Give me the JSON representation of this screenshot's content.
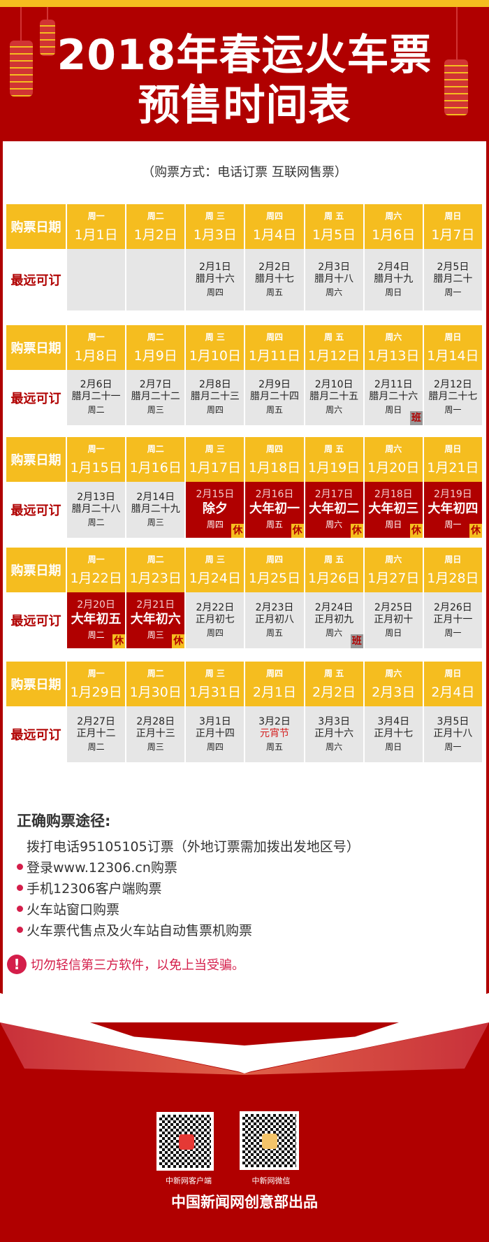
{
  "header": {
    "line1": "2018年春运火车票",
    "line2": "预售时间表"
  },
  "subtitle": "（购票方式：电话订票  互联网售票）",
  "labels": {
    "purchase_date": "购票日期",
    "latest_bookable": "最远可订"
  },
  "colors": {
    "red": "#b00000",
    "yellow": "#f5bd1f",
    "grey": "#e6e6e6",
    "pink": "#d41e4a"
  },
  "weeks": [
    {
      "days": [
        {
          "wd": "周一",
          "date": "1月1日"
        },
        {
          "wd": "周二",
          "date": "1月2日"
        },
        {
          "wd": "周 三",
          "date": "1月3日"
        },
        {
          "wd": "周四",
          "date": "1月4日"
        },
        {
          "wd": "周 五",
          "date": "1月5日"
        },
        {
          "wd": "周六",
          "date": "1月6日"
        },
        {
          "wd": "周日",
          "date": "1月7日"
        }
      ],
      "cells": [
        {},
        {},
        {
          "d": "2月1日",
          "l": "腊月十六",
          "w": "周四"
        },
        {
          "d": "2月2日",
          "l": "腊月十七",
          "w": "周五"
        },
        {
          "d": "2月3日",
          "l": "腊月十八",
          "w": "周六"
        },
        {
          "d": "2月4日",
          "l": "腊月十九",
          "w": "周日"
        },
        {
          "d": "2月5日",
          "l": "腊月二十",
          "w": "周一"
        }
      ]
    },
    {
      "days": [
        {
          "wd": "周一",
          "date": "1月8日"
        },
        {
          "wd": "周二",
          "date": "1月9日"
        },
        {
          "wd": "周 三",
          "date": "1月10日"
        },
        {
          "wd": "周四",
          "date": "1月11日"
        },
        {
          "wd": "周 五",
          "date": "1月12日"
        },
        {
          "wd": "周六",
          "date": "1月13日"
        },
        {
          "wd": "周日",
          "date": "1月14日"
        }
      ],
      "cells": [
        {
          "d": "2月6日",
          "l": "腊月二十一",
          "w": "周二"
        },
        {
          "d": "2月7日",
          "l": "腊月二十二",
          "w": "周三"
        },
        {
          "d": "2月8日",
          "l": "腊月二十三",
          "w": "周四"
        },
        {
          "d": "2月9日",
          "l": "腊月二十四",
          "w": "周五"
        },
        {
          "d": "2月10日",
          "l": "腊月二十五",
          "w": "周六"
        },
        {
          "d": "2月11日",
          "l": "腊月二十六",
          "w": "周日",
          "badge": "班",
          "type": "work"
        },
        {
          "d": "2月12日",
          "l": "腊月二十七",
          "w": "周一"
        }
      ]
    },
    {
      "days": [
        {
          "wd": "周一",
          "date": "1月15日"
        },
        {
          "wd": "周二",
          "date": "1月16日"
        },
        {
          "wd": "周 三",
          "date": "1月17日"
        },
        {
          "wd": "周四",
          "date": "1月18日"
        },
        {
          "wd": "周 五",
          "date": "1月19日"
        },
        {
          "wd": "周六",
          "date": "1月20日"
        },
        {
          "wd": "周日",
          "date": "1月21日"
        }
      ],
      "cells": [
        {
          "d": "2月13日",
          "l": "腊月二十八",
          "w": "周二"
        },
        {
          "d": "2月14日",
          "l": "腊月二十九",
          "w": "周三"
        },
        {
          "d": "2月15日",
          "l": "除夕",
          "w": "周四",
          "badge": "休",
          "type": "rest",
          "hol": true
        },
        {
          "d": "2月16日",
          "l": "大年初一",
          "w": "周五",
          "badge": "休",
          "type": "rest",
          "hol": true
        },
        {
          "d": "2月17日",
          "l": "大年初二",
          "w": "周六",
          "badge": "休",
          "type": "rest",
          "hol": true
        },
        {
          "d": "2月18日",
          "l": "大年初三",
          "w": "周日",
          "badge": "休",
          "type": "rest",
          "hol": true
        },
        {
          "d": "2月19日",
          "l": "大年初四",
          "w": "周一",
          "badge": "休",
          "type": "rest",
          "hol": true
        }
      ]
    },
    {
      "days": [
        {
          "wd": "周一",
          "date": "1月22日"
        },
        {
          "wd": "周二",
          "date": "1月23日"
        },
        {
          "wd": "周 三",
          "date": "1月24日"
        },
        {
          "wd": "周四",
          "date": "1月25日"
        },
        {
          "wd": "周 五",
          "date": "1月26日"
        },
        {
          "wd": "周六",
          "date": "1月27日"
        },
        {
          "wd": "周日",
          "date": "1月28日"
        }
      ],
      "cells": [
        {
          "d": "2月20日",
          "l": "大年初五",
          "w": "周二",
          "badge": "休",
          "type": "rest",
          "hol": true
        },
        {
          "d": "2月21日",
          "l": "大年初六",
          "w": "周三",
          "badge": "休",
          "type": "rest",
          "hol": true
        },
        {
          "d": "2月22日",
          "l": "正月初七",
          "w": "周四"
        },
        {
          "d": "2月23日",
          "l": "正月初八",
          "w": "周五"
        },
        {
          "d": "2月24日",
          "l": "正月初九",
          "w": "周六",
          "badge": "班",
          "type": "work"
        },
        {
          "d": "2月25日",
          "l": "正月初十",
          "w": "周日"
        },
        {
          "d": "2月26日",
          "l": "正月十一",
          "w": "周一"
        }
      ]
    },
    {
      "days": [
        {
          "wd": "周一",
          "date": "1月29日"
        },
        {
          "wd": "周二",
          "date": "1月30日"
        },
        {
          "wd": "周 三",
          "date": "1月31日"
        },
        {
          "wd": "周四",
          "date": "2月1日"
        },
        {
          "wd": "周 五",
          "date": "2月2日"
        },
        {
          "wd": "周六",
          "date": "2月3日"
        },
        {
          "wd": "周日",
          "date": "2月4日"
        }
      ],
      "cells": [
        {
          "d": "2月27日",
          "l": "正月十二",
          "w": "周二"
        },
        {
          "d": "2月28日",
          "l": "正月十三",
          "w": "周三"
        },
        {
          "d": "3月1日",
          "l": "正月十四",
          "w": "周四"
        },
        {
          "d": "3月2日",
          "l": "元宵节",
          "w": "周五",
          "fest": true
        },
        {
          "d": "3月3日",
          "l": "正月十六",
          "w": "周六"
        },
        {
          "d": "3月4日",
          "l": "正月十七",
          "w": "周日"
        },
        {
          "d": "3月5日",
          "l": "正月十八",
          "w": "周一"
        }
      ]
    }
  ],
  "info": {
    "heading": "正确购票途径:",
    "items": [
      "拨打电话95105105订票（外地订票需加拨出发地区号）",
      "登录www.12306.cn购票",
      "手机12306客户端购票",
      "火车站窗口购票",
      "火车票代售点及火车站自动售票机购票"
    ],
    "warning": "切勿轻信第三方软件，以免上当受骗。",
    "warning_icon": "!"
  },
  "footer": {
    "qr1_label": "中新网客户端",
    "qr2_label": "中新网微信",
    "credit": "中国新闻网创意部出品"
  }
}
